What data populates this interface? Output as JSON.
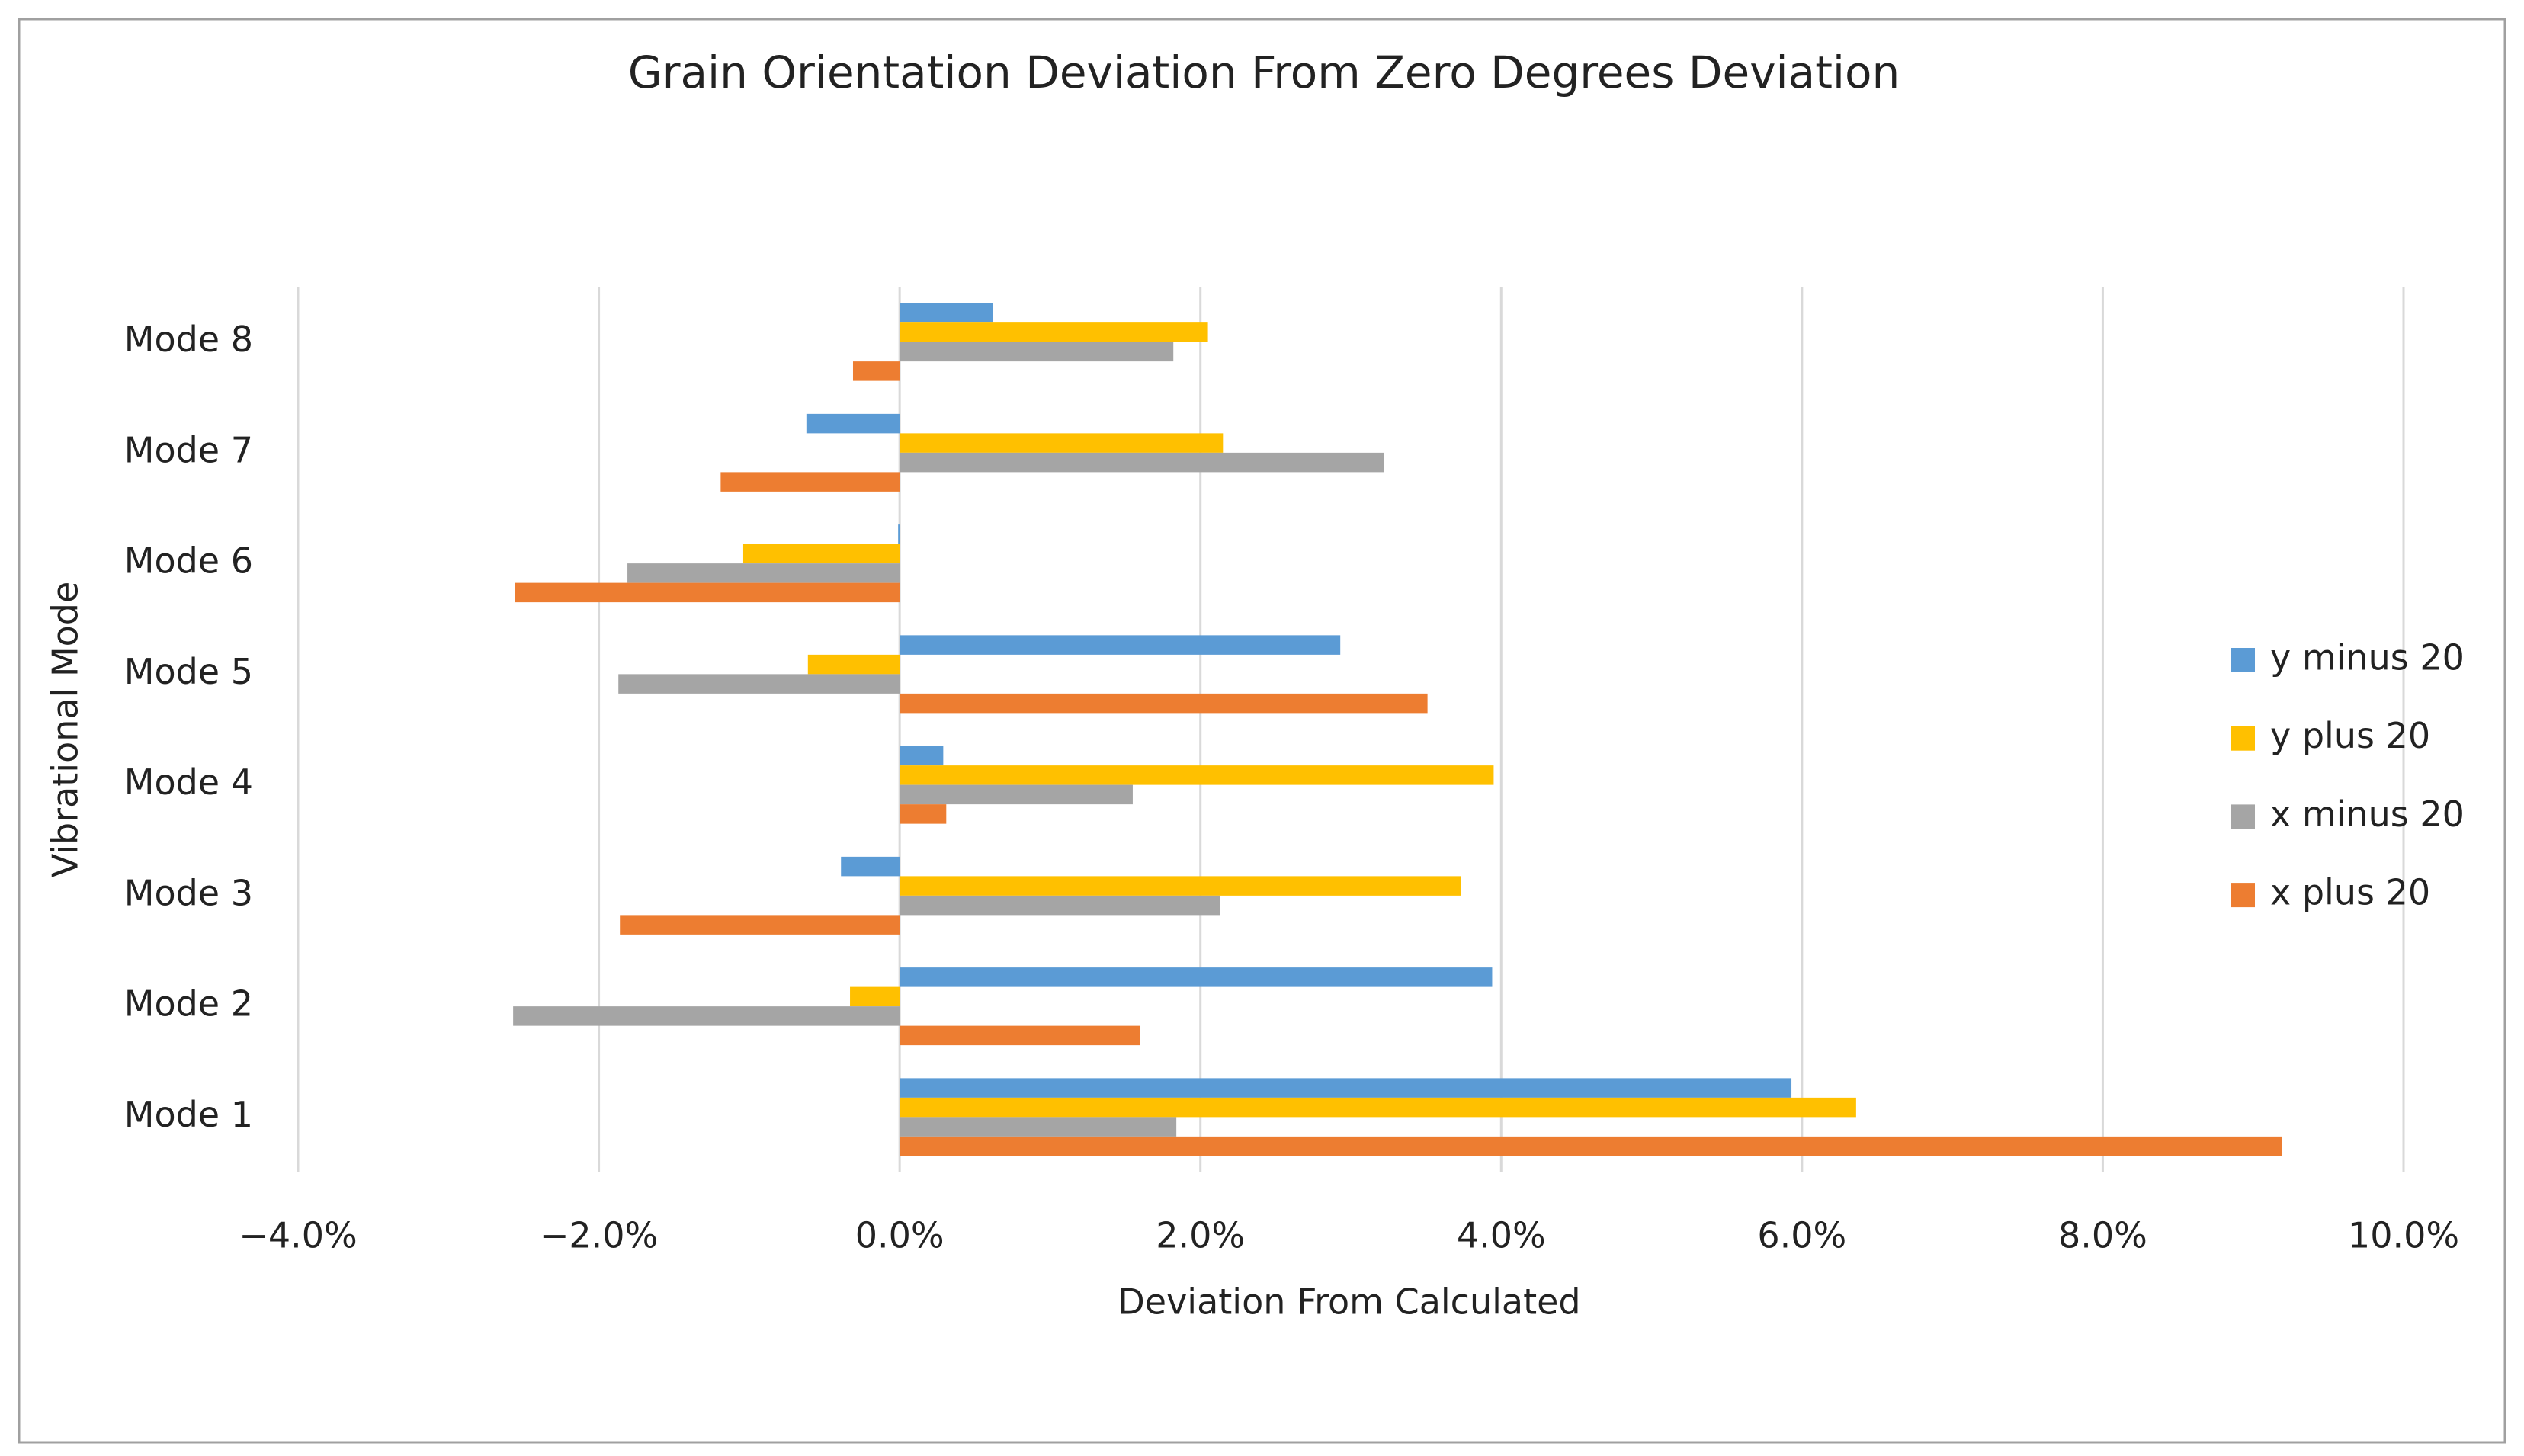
{
  "chart_data": {
    "type": "hbar",
    "title": "Grain Orientation Deviation From Zero Degrees Deviation",
    "x_label": "Deviation From Calculated",
    "y_label": "Vibrational Mode",
    "categories": [
      "Mode 1",
      "Mode 2",
      "Mode 3",
      "Mode 4",
      "Mode 5",
      "Mode 6",
      "Mode 7",
      "Mode 8"
    ],
    "series": [
      {
        "name": "y minus 20",
        "color": "#5b9bd5",
        "values": [
          5.93,
          3.94,
          -0.39,
          0.29,
          2.93,
          -0.01,
          -0.62,
          0.62
        ]
      },
      {
        "name": "y plus 20",
        "color": "#ffc000",
        "values": [
          6.36,
          -0.33,
          3.73,
          3.95,
          -0.61,
          -1.04,
          2.15,
          2.05
        ]
      },
      {
        "name": "x minus 20",
        "color": "#a5a5a5",
        "values": [
          1.84,
          -2.57,
          2.13,
          1.55,
          -1.87,
          -1.81,
          3.22,
          1.82
        ]
      },
      {
        "name": "x plus 20",
        "color": "#ed7d31",
        "values": [
          9.19,
          1.6,
          -1.86,
          0.31,
          3.51,
          -2.56,
          -1.19,
          -0.31
        ]
      }
    ],
    "xlim": [
      -4,
      10
    ],
    "xticks": [
      {
        "value": -4,
        "label": "−4.0%"
      },
      {
        "value": -2,
        "label": "−2.0%"
      },
      {
        "value": 0,
        "label": "0.0%"
      },
      {
        "value": 2,
        "label": "2.0%"
      },
      {
        "value": 4,
        "label": "4.0%"
      },
      {
        "value": 6,
        "label": "6.0%"
      },
      {
        "value": 8,
        "label": "8.0%"
      },
      {
        "value": 10,
        "label": "10.0%"
      }
    ],
    "grid": true,
    "legend": "right"
  }
}
